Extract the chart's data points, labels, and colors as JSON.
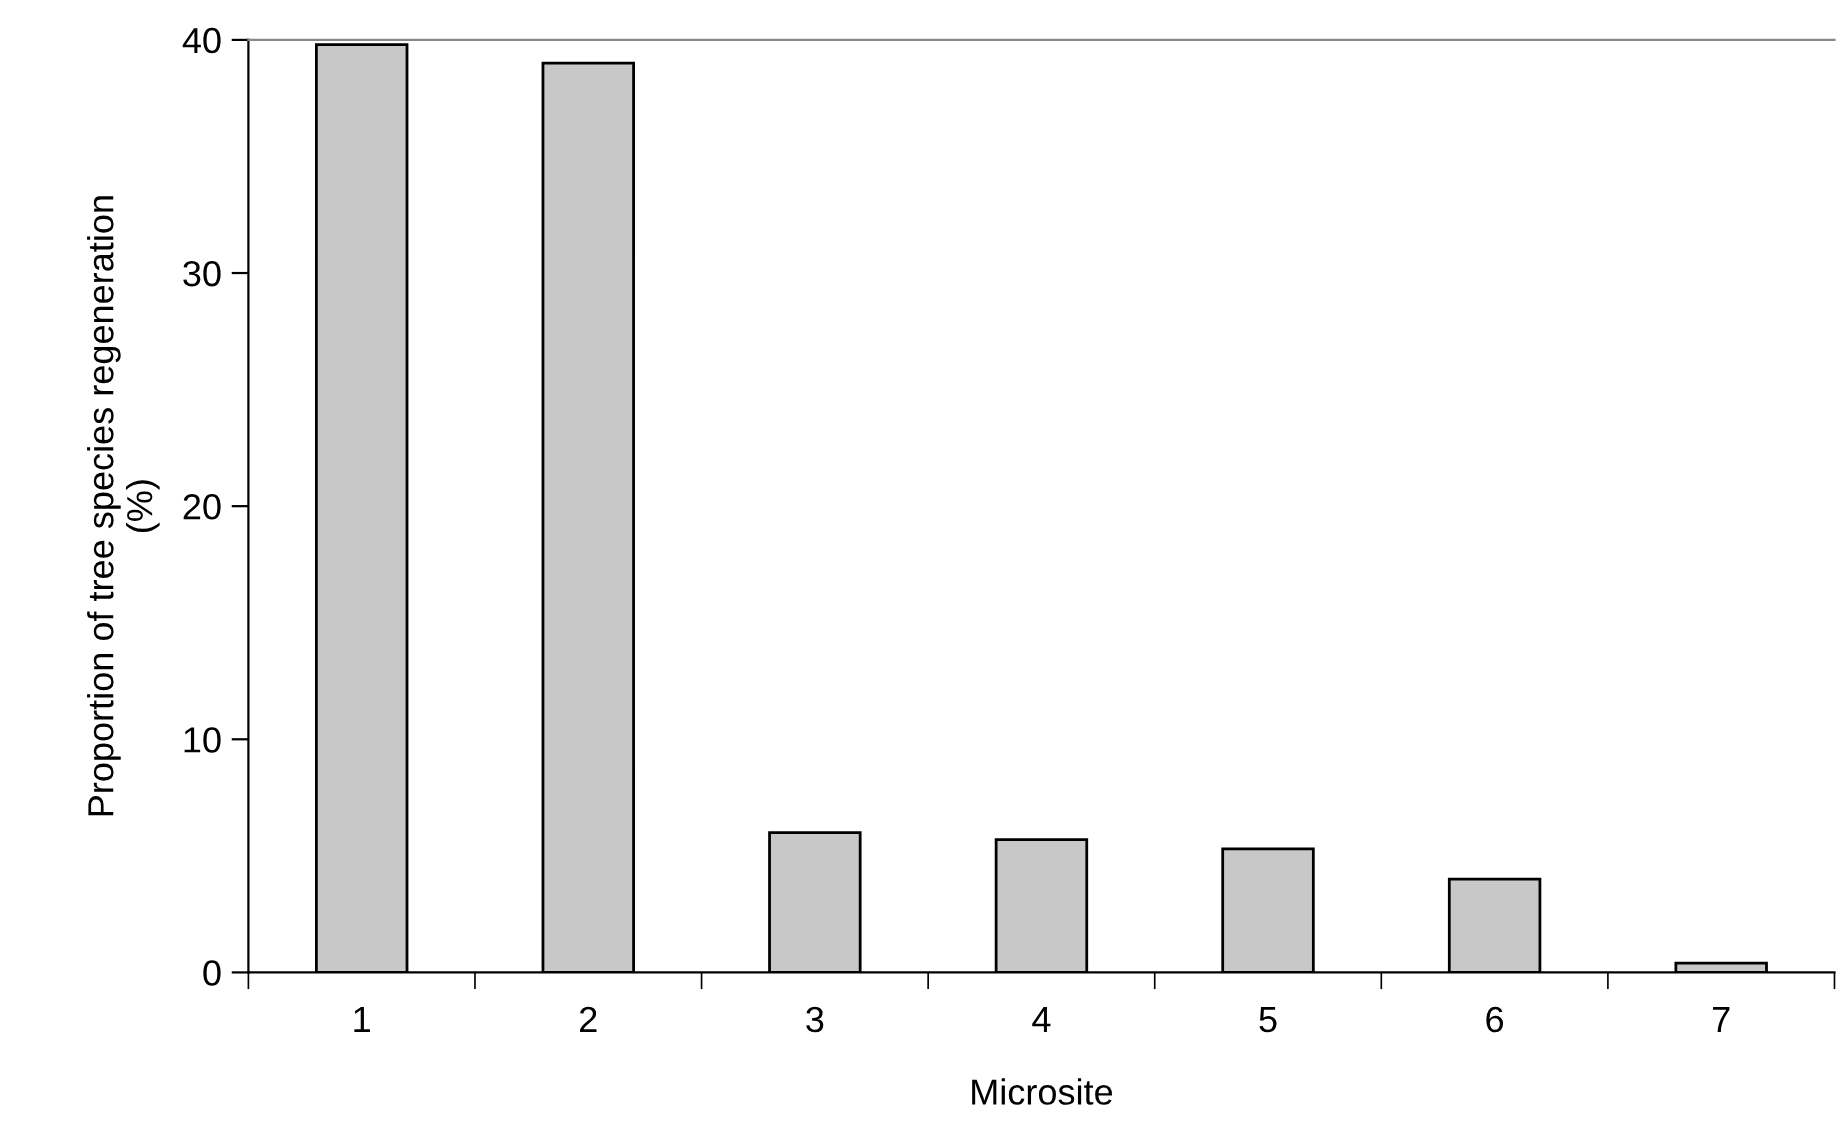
{
  "chart_data": {
    "type": "bar",
    "xlabel": "Microsite",
    "ylabel": "Proportion of tree species regeneration\n(%)",
    "categories": [
      "1",
      "2",
      "3",
      "4",
      "5",
      "6",
      "7"
    ],
    "values": [
      39.8,
      39.0,
      6.0,
      5.7,
      5.3,
      4.0,
      0.4
    ],
    "color": "#c8c8c8",
    "ylim": [
      0,
      40
    ],
    "yticks": [
      0,
      10,
      20,
      30,
      40
    ],
    "grid": false
  }
}
